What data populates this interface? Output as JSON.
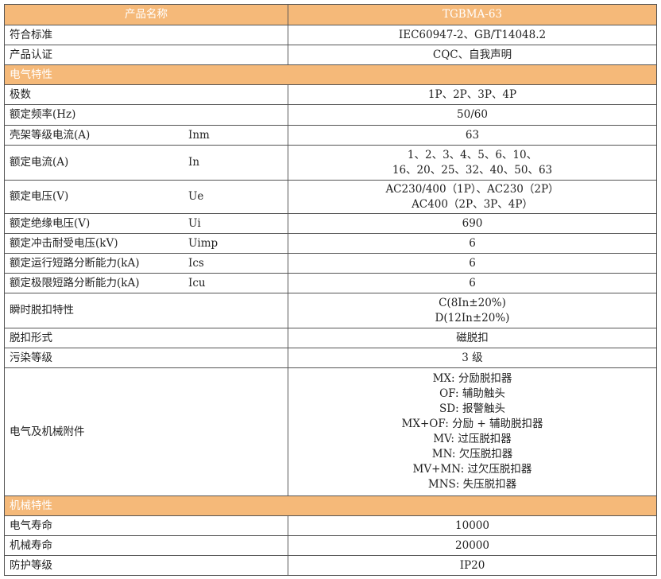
{
  "header": {
    "label": "产品名称",
    "value": "TGBMA-63"
  },
  "colors": {
    "header_bg": "#F5B979",
    "header_text": "#FFFFFF"
  },
  "rows": [
    {
      "type": "row",
      "label": "符合标准",
      "sub": "",
      "values": [
        "IEC60947-2、GB/T14048.2"
      ]
    },
    {
      "type": "row",
      "label": "产品认证",
      "sub": "",
      "values": [
        "CQC、自我声明"
      ]
    },
    {
      "type": "section",
      "label": "电气特性"
    },
    {
      "type": "row",
      "label": "极数",
      "sub": "",
      "values": [
        "1P、2P、3P、4P"
      ]
    },
    {
      "type": "row",
      "label": "额定频率(Hz)",
      "sub": "",
      "values": [
        "50/60"
      ]
    },
    {
      "type": "row",
      "label": "壳架等级电流(A)",
      "sub": "Inm",
      "values": [
        "63"
      ]
    },
    {
      "type": "row",
      "label": "额定电流(A)",
      "sub": "In",
      "values": [
        "1、2、3、4、5、6、10、",
        "16、20、25、32、40、50、63"
      ]
    },
    {
      "type": "row",
      "label": "额定电压(V)",
      "sub": "Ue",
      "values": [
        "AC230/400（1P）、AC230（2P）",
        "AC400（2P、3P、4P）"
      ]
    },
    {
      "type": "row",
      "label": "额定绝缘电压(V)",
      "sub": "Ui",
      "values": [
        "690"
      ]
    },
    {
      "type": "row",
      "label": "额定冲击耐受电压(kV)",
      "sub": "Uimp",
      "values": [
        "6"
      ]
    },
    {
      "type": "row",
      "label": "额定运行短路分断能力(kA)",
      "sub": "Ics",
      "values": [
        "6"
      ]
    },
    {
      "type": "row",
      "label": "额定极限短路分断能力(kA)",
      "sub": "Icu",
      "values": [
        "6"
      ]
    },
    {
      "type": "row",
      "label": "瞬时脱扣特性",
      "sub": "",
      "values": [
        "C(8In±20%)",
        "D(12In±20%)"
      ]
    },
    {
      "type": "row",
      "label": "脱扣形式",
      "sub": "",
      "values": [
        "磁脱扣"
      ]
    },
    {
      "type": "row",
      "label": "污染等级",
      "sub": "",
      "values": [
        "3 级"
      ]
    },
    {
      "type": "row",
      "label": "电气及机械附件",
      "sub": "",
      "values": [
        "MX: 分励脱扣器",
        "OF: 辅助触头",
        "SD: 报警触头",
        "MX+OF: 分励 + 辅助脱扣器",
        "MV: 过压脱扣器",
        "MN: 欠压脱扣器",
        "MV+MN: 过欠压脱扣器",
        "MNS: 失压脱扣器"
      ]
    },
    {
      "type": "section",
      "label": "机械特性"
    },
    {
      "type": "row",
      "label": "电气寿命",
      "sub": "",
      "values": [
        "10000"
      ]
    },
    {
      "type": "row",
      "label": "机械寿命",
      "sub": "",
      "values": [
        "20000"
      ]
    },
    {
      "type": "row",
      "label": "防护等级",
      "sub": "",
      "values": [
        "IP20"
      ]
    }
  ]
}
